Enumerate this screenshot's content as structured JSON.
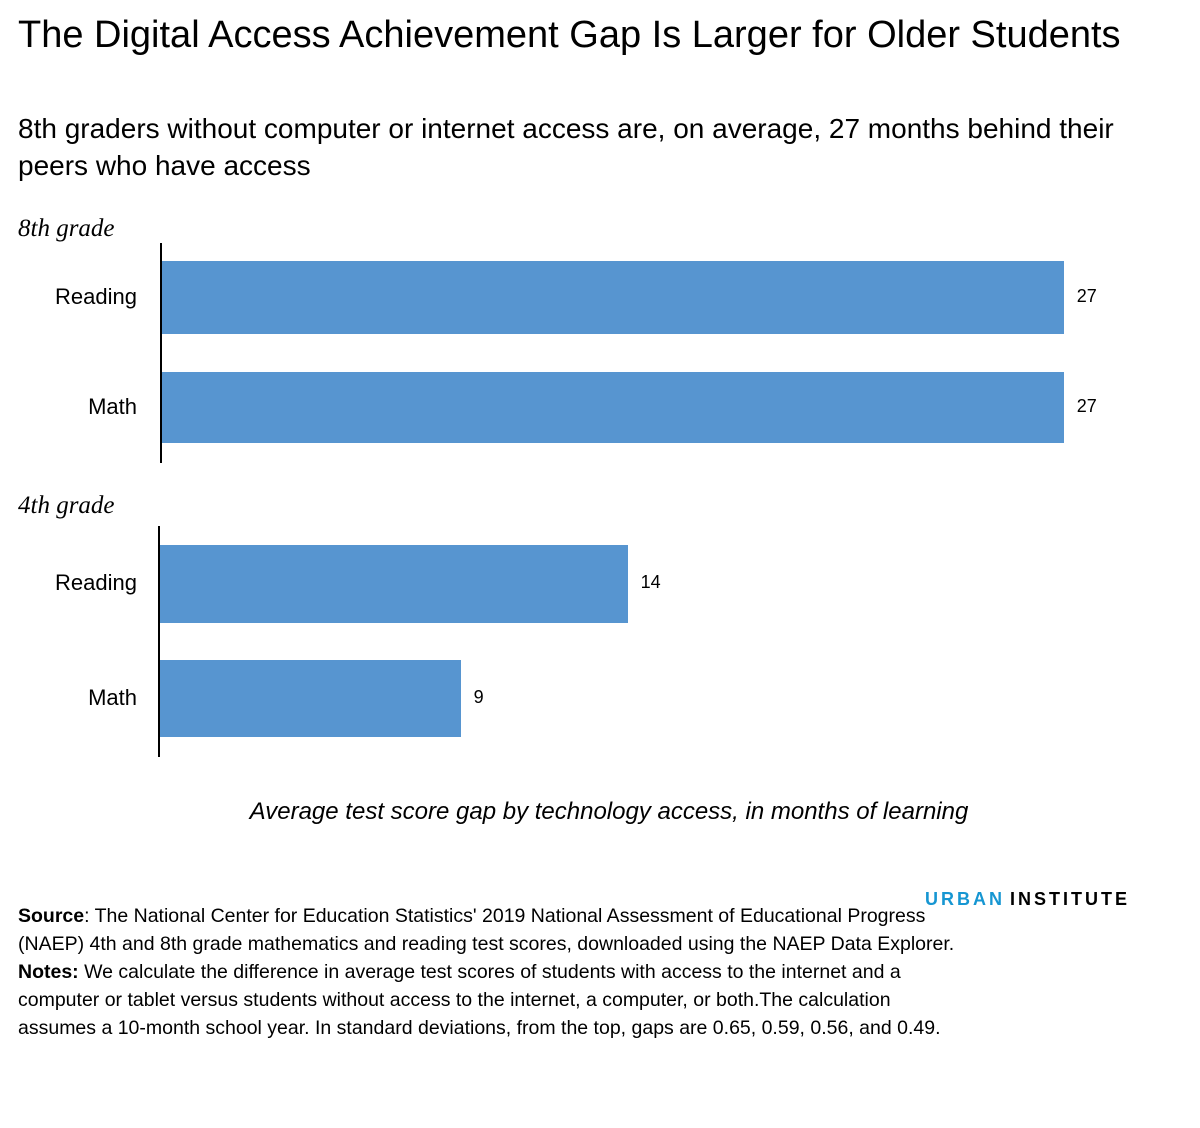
{
  "title": "The Digital Access Achievement Gap Is Larger for Older Students",
  "subtitle": "8th graders without computer or internet access are, on average, 27 months behind their peers who have access",
  "chart_data": {
    "type": "bar",
    "orientation": "horizontal",
    "groups": [
      {
        "label": "8th grade",
        "categories": [
          "Reading",
          "Math"
        ],
        "values": [
          27,
          27
        ]
      },
      {
        "label": "4th grade",
        "categories": [
          "Reading",
          "Math"
        ],
        "values": [
          14,
          9
        ]
      }
    ],
    "value_labels": [
      "27",
      "27",
      "14",
      "9"
    ],
    "xlabel": "Average test score gap by technology access, in months of learning",
    "xlim": [
      0,
      27
    ],
    "grid": false,
    "color": "#5795d0"
  },
  "footer": {
    "source_label": "Source",
    "source_text": ": The National Center for Education Statistics' 2019 National Assessment of Educational Progress (NAEP) 4th and 8th grade mathematics and reading test scores, downloaded using the NAEP Data Explorer.",
    "notes_label": "Notes:",
    "notes_text": " We calculate the difference in average test scores of students with access to the internet and a computer or tablet versus students without access to the internet, a computer, or both.The calculation assumes a 10-month school year. In standard deviations, from the top, gaps are 0.65, 0.59, 0.56, and 0.49."
  },
  "logo": {
    "urban": "URBAN",
    "institute": "INSTITUTE",
    "urban_color": "#1696d2"
  }
}
